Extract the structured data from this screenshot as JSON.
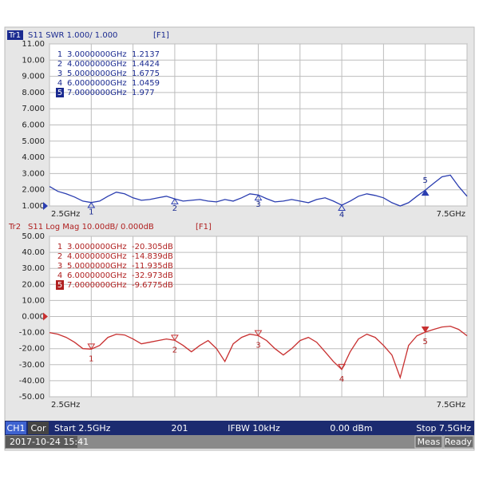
{
  "chart_data": [
    {
      "type": "line",
      "trace_label": "Tr1",
      "measurement": "S11 SWR 1.000/ 1.000",
      "format_tag": "[F1]",
      "x_start_label": "2.5GHz",
      "x_stop_label": "7.5GHz",
      "xlim": [
        2.5,
        7.5
      ],
      "xticks": [
        2.5,
        3,
        3.5,
        4,
        4.5,
        5,
        5.5,
        6,
        6.5,
        7,
        7.5
      ],
      "ylim": [
        1,
        11
      ],
      "yticks": [
        {
          "value": 1,
          "label": "1.000"
        },
        {
          "value": 2,
          "label": "2.000"
        },
        {
          "value": 3,
          "label": "3.000"
        },
        {
          "value": 4,
          "label": "4.000"
        },
        {
          "value": 5,
          "label": "5.000"
        },
        {
          "value": 6,
          "label": "6.000"
        },
        {
          "value": 7,
          "label": "7.000"
        },
        {
          "value": 8,
          "label": "8.000"
        },
        {
          "value": 9,
          "label": "9.000"
        },
        {
          "value": 10,
          "label": "10.00"
        },
        {
          "value": 11,
          "label": "11.00"
        }
      ],
      "grid": true,
      "color": "#2a3db0",
      "label_color": "#1a2a90",
      "series": [
        {
          "x": [
            2.5,
            2.6,
            2.7,
            2.8,
            2.9,
            3.0,
            3.1,
            3.2,
            3.3,
            3.4,
            3.5,
            3.6,
            3.7,
            3.8,
            3.9,
            4.0,
            4.1,
            4.2,
            4.3,
            4.4,
            4.5,
            4.6,
            4.7,
            4.8,
            4.9,
            5.0,
            5.1,
            5.2,
            5.3,
            5.4,
            5.5,
            5.6,
            5.7,
            5.8,
            5.9,
            6.0,
            6.1,
            6.2,
            6.3,
            6.4,
            6.5,
            6.6,
            6.7,
            6.8,
            6.9,
            7.0,
            7.1,
            7.2,
            7.3,
            7.4,
            7.5
          ],
          "values": [
            2.2,
            1.9,
            1.75,
            1.55,
            1.3,
            1.21,
            1.3,
            1.6,
            1.85,
            1.75,
            1.5,
            1.35,
            1.4,
            1.5,
            1.6,
            1.44,
            1.3,
            1.35,
            1.4,
            1.3,
            1.25,
            1.4,
            1.3,
            1.5,
            1.75,
            1.68,
            1.45,
            1.25,
            1.3,
            1.4,
            1.3,
            1.2,
            1.4,
            1.5,
            1.3,
            1.05,
            1.3,
            1.6,
            1.75,
            1.65,
            1.5,
            1.2,
            1.0,
            1.2,
            1.6,
            1.98,
            2.4,
            2.8,
            2.9,
            2.2,
            1.6
          ]
        }
      ],
      "markers": [
        {
          "label": "1",
          "x": 3,
          "x_label": "3.0000000GHz",
          "value": 1.2137
        },
        {
          "label": "2",
          "x": 4,
          "x_label": "4.0000000GHz",
          "value": 1.4424
        },
        {
          "label": "3",
          "x": 5,
          "x_label": "5.0000000GHz",
          "value": 1.6775
        },
        {
          "label": "4",
          "x": 6,
          "x_label": "6.0000000GHz",
          "value": 1.0459
        },
        {
          "label": "5",
          "x": 7,
          "x_label": "7.0000000GHz",
          "value": 1.977,
          "active": true
        }
      ]
    },
    {
      "type": "line",
      "trace_label": "Tr2",
      "measurement": "S11 Log Mag 10.00dB/ 0.000dB",
      "format_tag": "[F1]",
      "x_start_label": "2.5GHz",
      "x_stop_label": "7.5GHz",
      "xlim": [
        2.5,
        7.5
      ],
      "xticks": [
        2.5,
        3,
        3.5,
        4,
        4.5,
        5,
        5.5,
        6,
        6.5,
        7,
        7.5
      ],
      "ylim": [
        -50,
        50
      ],
      "yticks": [
        {
          "value": -50,
          "label": "-50.00"
        },
        {
          "value": -40,
          "label": "-40.00"
        },
        {
          "value": -30,
          "label": "-30.00"
        },
        {
          "value": -20,
          "label": "-20.00"
        },
        {
          "value": -10,
          "label": "-10.00"
        },
        {
          "value": 0,
          "label": "0.000"
        },
        {
          "value": 10,
          "label": "10.00"
        },
        {
          "value": 20,
          "label": "20.00"
        },
        {
          "value": 30,
          "label": "30.00"
        },
        {
          "value": 40,
          "label": "40.00"
        },
        {
          "value": 50,
          "label": "50.00"
        }
      ],
      "grid": true,
      "color": "#c83030",
      "label_color": "#b02020",
      "series": [
        {
          "x": [
            2.5,
            2.6,
            2.7,
            2.8,
            2.9,
            3.0,
            3.1,
            3.2,
            3.3,
            3.4,
            3.5,
            3.6,
            3.7,
            3.8,
            3.9,
            4.0,
            4.1,
            4.2,
            4.3,
            4.4,
            4.5,
            4.6,
            4.7,
            4.8,
            4.9,
            5.0,
            5.1,
            5.2,
            5.3,
            5.4,
            5.5,
            5.6,
            5.7,
            5.8,
            5.9,
            6.0,
            6.1,
            6.2,
            6.3,
            6.4,
            6.5,
            6.6,
            6.7,
            6.8,
            6.9,
            7.0,
            7.1,
            7.2,
            7.3,
            7.4,
            7.5
          ],
          "values": [
            -10,
            -11,
            -13,
            -16,
            -20,
            -20.3,
            -18,
            -13,
            -11,
            -11.5,
            -14,
            -17,
            -16,
            -15,
            -14,
            -14.8,
            -18,
            -22,
            -18,
            -15,
            -20,
            -28,
            -17,
            -13,
            -11,
            -11.9,
            -15,
            -20,
            -24,
            -20,
            -15,
            -13,
            -16,
            -22,
            -28,
            -33,
            -22,
            -14,
            -11,
            -13,
            -18,
            -24,
            -38,
            -18,
            -12,
            -9.7,
            -8,
            -6.5,
            -6,
            -8,
            -12
          ]
        }
      ],
      "markers": [
        {
          "label": "1",
          "x": 3,
          "x_label": "3.0000000GHz",
          "value": -20.305,
          "value_label": "-20.305dB"
        },
        {
          "label": "2",
          "x": 4,
          "x_label": "4.0000000GHz",
          "value": -14.839,
          "value_label": "-14.839dB"
        },
        {
          "label": "3",
          "x": 5,
          "x_label": "5.0000000GHz",
          "value": -11.935,
          "value_label": "-11.935dB"
        },
        {
          "label": "4",
          "x": 6,
          "x_label": "6.0000000GHz",
          "value": -32.973,
          "value_label": "-32.973dB"
        },
        {
          "label": "5",
          "x": 7,
          "x_label": "7.0000000GHz",
          "value": -9.6775,
          "value_label": "-9.6775dB",
          "active": true
        }
      ]
    }
  ],
  "status": {
    "channel": "CH1",
    "correction": "Cor",
    "start": "Start 2.5GHz",
    "points": "201",
    "ifbw": "IFBW 10kHz",
    "power": "0.00 dBm",
    "stop": "Stop 7.5GHz",
    "timestamp": "2017-10-24 15:41",
    "meas": "Meas",
    "ready": "Ready"
  }
}
